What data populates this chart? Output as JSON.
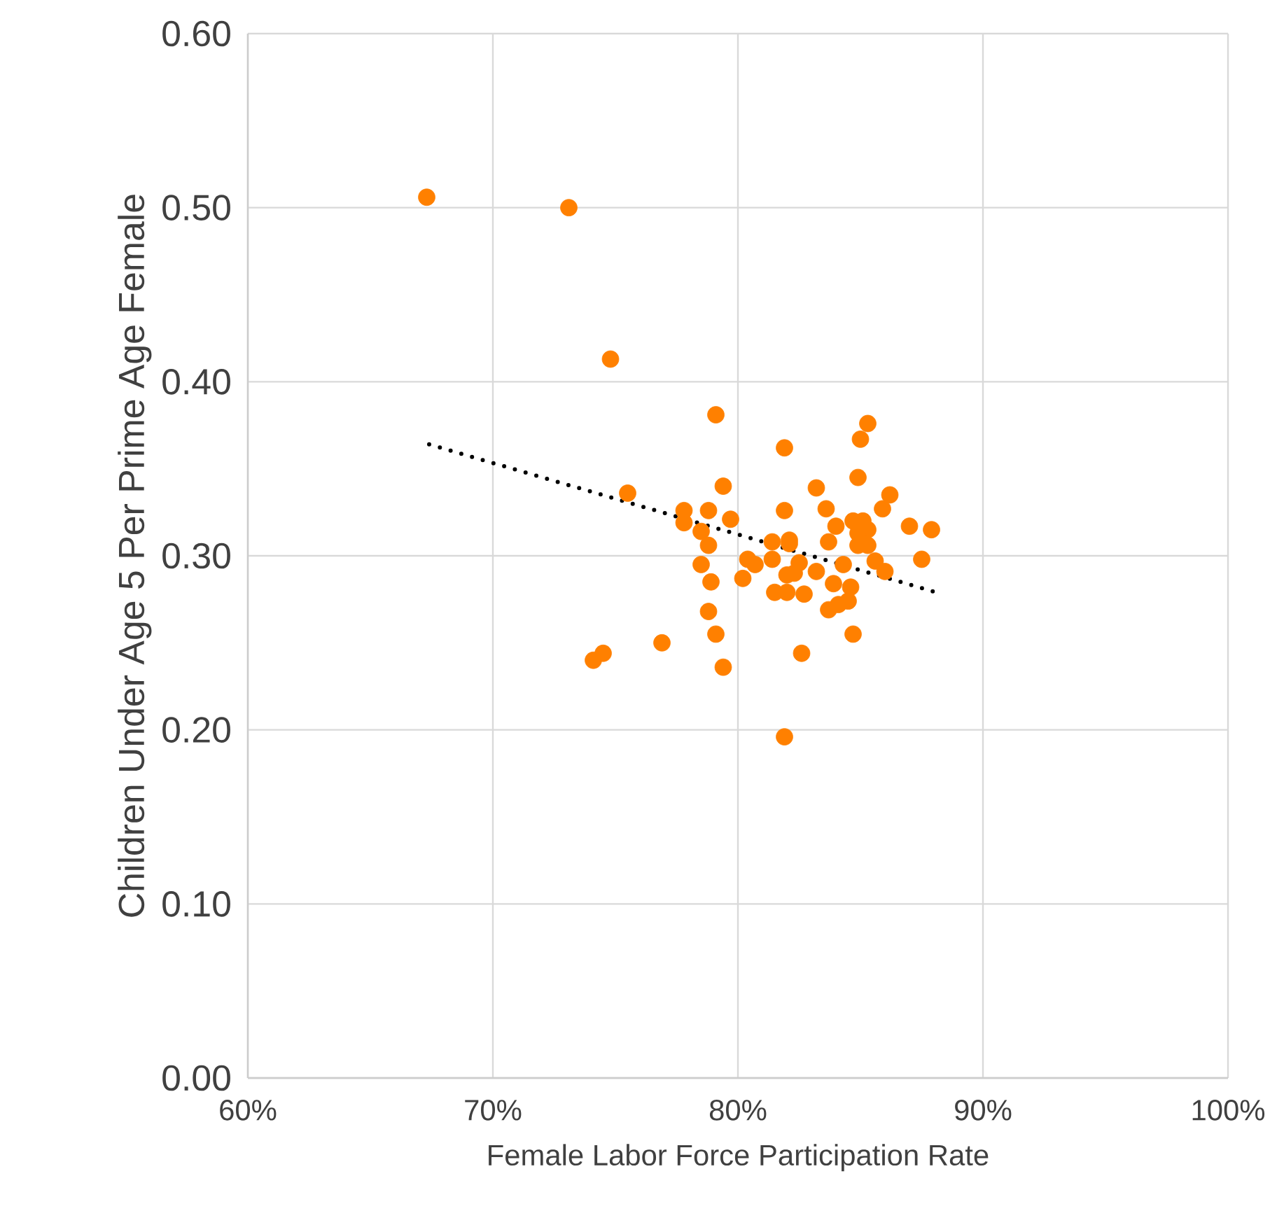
{
  "chart_data": {
    "type": "scatter",
    "xlabel": "Female Labor Force Participation Rate",
    "ylabel": "Children Under Age 5 Per Prime Age Female",
    "xlim": [
      0.6,
      1.0
    ],
    "ylim": [
      0,
      0.6
    ],
    "xticks": [
      {
        "value": 0.6,
        "label": "60%"
      },
      {
        "value": 0.7,
        "label": "70%"
      },
      {
        "value": 0.8,
        "label": "80%"
      },
      {
        "value": 0.9,
        "label": "90%"
      },
      {
        "value": 1.0,
        "label": "100%"
      }
    ],
    "yticks": [
      {
        "value": 0,
        "label": "0.00"
      },
      {
        "value": 0.1,
        "label": "0.10"
      },
      {
        "value": 0.2,
        "label": "0.20"
      },
      {
        "value": 0.3,
        "label": "0.30"
      },
      {
        "value": 0.4,
        "label": "0.40"
      },
      {
        "value": 0.5,
        "label": "0.50"
      },
      {
        "value": 0.6,
        "label": "0.60"
      }
    ],
    "grid": true,
    "series": [
      {
        "color": "#ff8000",
        "marker": "circle",
        "x": [
          0.673,
          0.731,
          0.748,
          0.791,
          0.755,
          0.794,
          0.778,
          0.788,
          0.797,
          0.778,
          0.785,
          0.788,
          0.785,
          0.789,
          0.788,
          0.791,
          0.794,
          0.769,
          0.745,
          0.741,
          0.802,
          0.819,
          0.819,
          0.821,
          0.814,
          0.821,
          0.804,
          0.807,
          0.814,
          0.825,
          0.832,
          0.82,
          0.823,
          0.815,
          0.82,
          0.827,
          0.839,
          0.846,
          0.845,
          0.843,
          0.847,
          0.851,
          0.853,
          0.849,
          0.849,
          0.853,
          0.849,
          0.85,
          0.853,
          0.862,
          0.859,
          0.87,
          0.879,
          0.875,
          0.856,
          0.86,
          0.847,
          0.826,
          0.819,
          0.832,
          0.836,
          0.84,
          0.837,
          0.837,
          0.841
        ],
        "values": [
          0.506,
          0.5,
          0.413,
          0.381,
          0.336,
          0.34,
          0.326,
          0.326,
          0.321,
          0.319,
          0.314,
          0.306,
          0.295,
          0.285,
          0.268,
          0.255,
          0.236,
          0.25,
          0.244,
          0.24,
          0.287,
          0.326,
          0.362,
          0.307,
          0.308,
          0.309,
          0.298,
          0.295,
          0.298,
          0.296,
          0.291,
          0.289,
          0.29,
          0.279,
          0.279,
          0.278,
          0.284,
          0.282,
          0.274,
          0.295,
          0.32,
          0.32,
          0.315,
          0.313,
          0.306,
          0.306,
          0.345,
          0.367,
          0.376,
          0.335,
          0.327,
          0.317,
          0.315,
          0.298,
          0.297,
          0.291,
          0.255,
          0.244,
          0.196,
          0.339,
          0.327,
          0.317,
          0.308,
          0.269,
          0.272
        ]
      },
      {
        "type": "line",
        "color": "#000000",
        "marker": "none",
        "line_style": "dotted",
        "x": [
          0.674,
          0.881
        ],
        "values": [
          0.364,
          0.279
        ]
      }
    ]
  }
}
